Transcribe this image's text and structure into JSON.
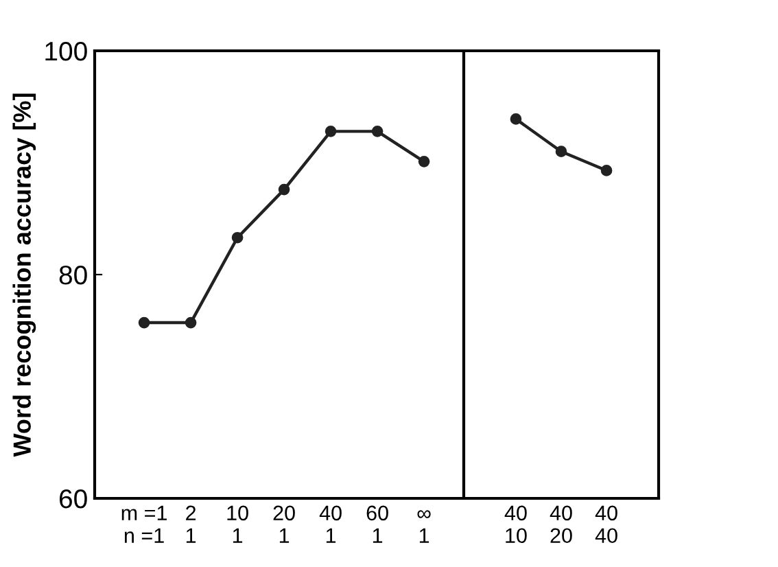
{
  "chart_data": [
    {
      "type": "line",
      "ylabel": "Word recognition accuracy [%]",
      "categories": [
        "m =1\nn =1",
        "2\n1",
        "10\n1",
        "20\n1",
        "40\n1",
        "60\n1",
        "∞\n1"
      ],
      "series": [
        {
          "color": "#222222",
          "values": [
            75.7,
            75.7,
            83.3,
            87.6,
            92.8,
            92.8,
            90.1
          ]
        }
      ],
      "ylim": [
        60,
        100
      ],
      "yticks": [
        60,
        80,
        100
      ],
      "marker": "circle",
      "line_style": "solid",
      "grid": false,
      "legend": false
    },
    {
      "type": "line",
      "categories": [
        "40\n10",
        "40\n20",
        "40\n40"
      ],
      "series": [
        {
          "color": "#222222",
          "values": [
            93.9,
            91.0,
            89.3
          ]
        }
      ],
      "ylim": [
        60,
        100
      ],
      "yticks": [
        60,
        80,
        100
      ],
      "tick_labels": "x",
      "marker": "circle",
      "line_style": "solid",
      "grid": false,
      "legend": false
    }
  ]
}
